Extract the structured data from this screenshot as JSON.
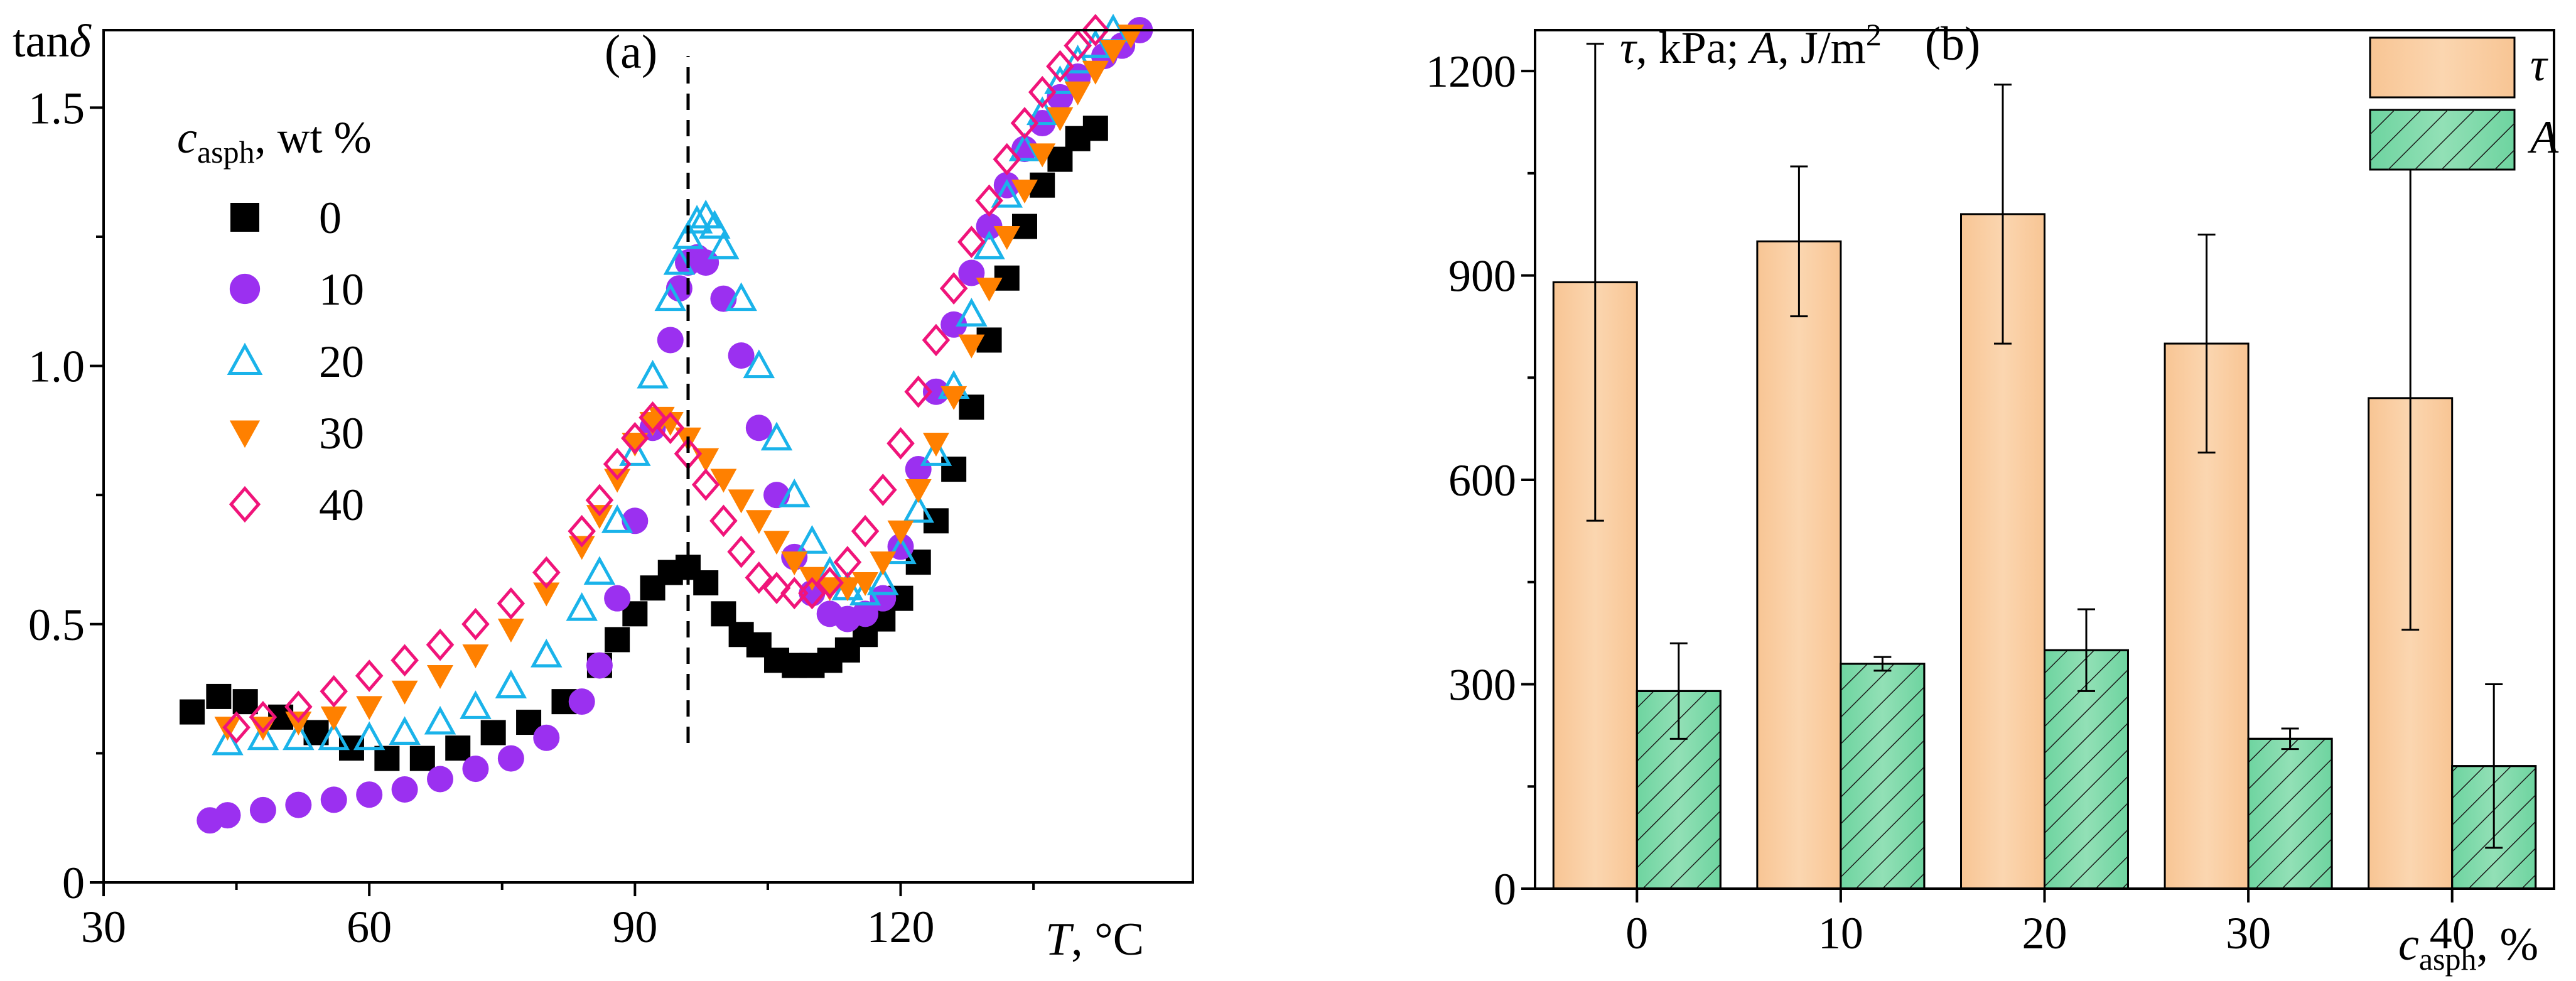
{
  "chart_data": [
    {
      "type": "scatter",
      "panel_label": "(a)",
      "ylabel_main": "tan",
      "ylabel_greek": "δ",
      "xlabel_var": "T",
      "xlabel_unit": ", °C",
      "xlim": [
        30,
        153
      ],
      "ylim": [
        0,
        1.65
      ],
      "xticks": [
        30,
        60,
        90,
        120
      ],
      "xtick_labels": [
        "30",
        "60",
        "90",
        "120"
      ],
      "yticks": [
        0,
        0.5,
        1.0,
        1.5
      ],
      "ytick_labels": [
        "0",
        "0.5",
        "1.0",
        "1.5"
      ],
      "vline_x": 96,
      "vline_y": [
        0.27,
        1.6
      ],
      "legend": {
        "title_var": "c",
        "title_sub": "asph",
        "title_unit": ", wt %",
        "position": "top-left"
      },
      "series": [
        {
          "name": "0",
          "marker": "square",
          "color": "#000000",
          "points": [
            [
              40,
              0.33
            ],
            [
              43,
              0.36
            ],
            [
              46,
              0.35
            ],
            [
              50,
              0.32
            ],
            [
              54,
              0.29
            ],
            [
              58,
              0.26
            ],
            [
              62,
              0.24
            ],
            [
              66,
              0.24
            ],
            [
              70,
              0.26
            ],
            [
              74,
              0.29
            ],
            [
              78,
              0.31
            ],
            [
              82,
              0.35
            ],
            [
              86,
              0.42
            ],
            [
              88,
              0.47
            ],
            [
              90,
              0.52
            ],
            [
              92,
              0.57
            ],
            [
              94,
              0.6
            ],
            [
              96,
              0.61
            ],
            [
              98,
              0.58
            ],
            [
              100,
              0.52
            ],
            [
              102,
              0.48
            ],
            [
              104,
              0.46
            ],
            [
              106,
              0.43
            ],
            [
              108,
              0.42
            ],
            [
              110,
              0.42
            ],
            [
              112,
              0.43
            ],
            [
              114,
              0.45
            ],
            [
              116,
              0.48
            ],
            [
              118,
              0.51
            ],
            [
              120,
              0.55
            ],
            [
              122,
              0.62
            ],
            [
              124,
              0.7
            ],
            [
              126,
              0.8
            ],
            [
              128,
              0.92
            ],
            [
              130,
              1.05
            ],
            [
              132,
              1.17
            ],
            [
              134,
              1.27
            ],
            [
              136,
              1.35
            ],
            [
              138,
              1.4
            ],
            [
              140,
              1.44
            ],
            [
              142,
              1.46
            ]
          ]
        },
        {
          "name": "10",
          "marker": "circle",
          "color": "#9b30f0",
          "points": [
            [
              42,
              0.12
            ],
            [
              44,
              0.13
            ],
            [
              48,
              0.14
            ],
            [
              52,
              0.15
            ],
            [
              56,
              0.16
            ],
            [
              60,
              0.17
            ],
            [
              64,
              0.18
            ],
            [
              68,
              0.2
            ],
            [
              72,
              0.22
            ],
            [
              76,
              0.24
            ],
            [
              80,
              0.28
            ],
            [
              84,
              0.35
            ],
            [
              86,
              0.42
            ],
            [
              88,
              0.55
            ],
            [
              90,
              0.7
            ],
            [
              92,
              0.88
            ],
            [
              94,
              1.05
            ],
            [
              95,
              1.15
            ],
            [
              96,
              1.2
            ],
            [
              97,
              1.21
            ],
            [
              98,
              1.2
            ],
            [
              100,
              1.13
            ],
            [
              102,
              1.02
            ],
            [
              104,
              0.88
            ],
            [
              106,
              0.75
            ],
            [
              108,
              0.63
            ],
            [
              110,
              0.56
            ],
            [
              112,
              0.52
            ],
            [
              114,
              0.51
            ],
            [
              116,
              0.52
            ],
            [
              118,
              0.55
            ],
            [
              120,
              0.65
            ],
            [
              122,
              0.8
            ],
            [
              124,
              0.95
            ],
            [
              126,
              1.08
            ],
            [
              128,
              1.18
            ],
            [
              130,
              1.27
            ],
            [
              132,
              1.35
            ],
            [
              134,
              1.42
            ],
            [
              136,
              1.47
            ],
            [
              138,
              1.52
            ],
            [
              140,
              1.56
            ],
            [
              143,
              1.6
            ],
            [
              145,
              1.62
            ],
            [
              147,
              1.65
            ]
          ]
        },
        {
          "name": "20",
          "marker": "triangle-up",
          "color": "#1ab3ea",
          "points": [
            [
              44,
              0.27
            ],
            [
              48,
              0.28
            ],
            [
              52,
              0.28
            ],
            [
              56,
              0.28
            ],
            [
              60,
              0.28
            ],
            [
              64,
              0.29
            ],
            [
              68,
              0.31
            ],
            [
              72,
              0.34
            ],
            [
              76,
              0.38
            ],
            [
              80,
              0.44
            ],
            [
              84,
              0.53
            ],
            [
              86,
              0.6
            ],
            [
              88,
              0.7
            ],
            [
              90,
              0.83
            ],
            [
              92,
              0.98
            ],
            [
              94,
              1.13
            ],
            [
              95,
              1.2
            ],
            [
              96,
              1.25
            ],
            [
              97,
              1.28
            ],
            [
              98,
              1.29
            ],
            [
              99,
              1.27
            ],
            [
              100,
              1.23
            ],
            [
              102,
              1.13
            ],
            [
              104,
              1.0
            ],
            [
              106,
              0.86
            ],
            [
              108,
              0.75
            ],
            [
              110,
              0.66
            ],
            [
              112,
              0.6
            ],
            [
              114,
              0.57
            ],
            [
              116,
              0.56
            ],
            [
              118,
              0.58
            ],
            [
              120,
              0.64
            ],
            [
              122,
              0.72
            ],
            [
              124,
              0.83
            ],
            [
              126,
              0.96
            ],
            [
              128,
              1.1
            ],
            [
              130,
              1.23
            ],
            [
              132,
              1.33
            ],
            [
              134,
              1.42
            ],
            [
              136,
              1.49
            ],
            [
              138,
              1.55
            ],
            [
              140,
              1.59
            ],
            [
              142,
              1.62
            ],
            [
              144,
              1.65
            ]
          ]
        },
        {
          "name": "30",
          "marker": "triangle-down",
          "color": "#ff8000",
          "points": [
            [
              44,
              0.3
            ],
            [
              48,
              0.3
            ],
            [
              52,
              0.31
            ],
            [
              56,
              0.32
            ],
            [
              60,
              0.34
            ],
            [
              64,
              0.37
            ],
            [
              68,
              0.4
            ],
            [
              72,
              0.44
            ],
            [
              76,
              0.49
            ],
            [
              80,
              0.56
            ],
            [
              84,
              0.65
            ],
            [
              86,
              0.71
            ],
            [
              88,
              0.78
            ],
            [
              90,
              0.85
            ],
            [
              92,
              0.89
            ],
            [
              93,
              0.9
            ],
            [
              94,
              0.89
            ],
            [
              96,
              0.86
            ],
            [
              98,
              0.82
            ],
            [
              100,
              0.78
            ],
            [
              102,
              0.74
            ],
            [
              104,
              0.7
            ],
            [
              106,
              0.66
            ],
            [
              108,
              0.62
            ],
            [
              110,
              0.59
            ],
            [
              112,
              0.57
            ],
            [
              114,
              0.57
            ],
            [
              116,
              0.58
            ],
            [
              118,
              0.62
            ],
            [
              120,
              0.68
            ],
            [
              122,
              0.76
            ],
            [
              124,
              0.85
            ],
            [
              126,
              0.94
            ],
            [
              128,
              1.04
            ],
            [
              130,
              1.15
            ],
            [
              132,
              1.25
            ],
            [
              134,
              1.34
            ],
            [
              136,
              1.41
            ],
            [
              138,
              1.48
            ],
            [
              140,
              1.53
            ],
            [
              142,
              1.57
            ],
            [
              144,
              1.61
            ],
            [
              146,
              1.64
            ]
          ]
        },
        {
          "name": "40",
          "marker": "diamond",
          "color": "#f0147a",
          "points": [
            [
              45,
              0.3
            ],
            [
              48,
              0.32
            ],
            [
              52,
              0.34
            ],
            [
              56,
              0.37
            ],
            [
              60,
              0.4
            ],
            [
              64,
              0.43
            ],
            [
              68,
              0.46
            ],
            [
              72,
              0.5
            ],
            [
              76,
              0.54
            ],
            [
              80,
              0.6
            ],
            [
              84,
              0.68
            ],
            [
              86,
              0.74
            ],
            [
              88,
              0.81
            ],
            [
              90,
              0.86
            ],
            [
              92,
              0.9
            ],
            [
              94,
              0.88
            ],
            [
              96,
              0.83
            ],
            [
              98,
              0.77
            ],
            [
              100,
              0.7
            ],
            [
              102,
              0.64
            ],
            [
              104,
              0.59
            ],
            [
              106,
              0.57
            ],
            [
              108,
              0.56
            ],
            [
              110,
              0.56
            ],
            [
              112,
              0.58
            ],
            [
              114,
              0.62
            ],
            [
              116,
              0.68
            ],
            [
              118,
              0.76
            ],
            [
              120,
              0.85
            ],
            [
              122,
              0.95
            ],
            [
              124,
              1.05
            ],
            [
              126,
              1.15
            ],
            [
              128,
              1.24
            ],
            [
              130,
              1.32
            ],
            [
              132,
              1.4
            ],
            [
              134,
              1.47
            ],
            [
              136,
              1.53
            ],
            [
              138,
              1.58
            ],
            [
              140,
              1.62
            ],
            [
              142,
              1.65
            ]
          ]
        }
      ]
    },
    {
      "type": "bar",
      "panel_label": "(b)",
      "ylabel_tau": "τ",
      "ylabel_mid1": ", kPa; ",
      "ylabel_A": "A",
      "ylabel_mid2": ", J/m",
      "ylabel_sup": "2",
      "xlabel_var": "c",
      "xlabel_sub": "asph",
      "xlabel_unit": ", %",
      "categories": [
        "0",
        "10",
        "20",
        "30",
        "40"
      ],
      "ylim": [
        0,
        1260
      ],
      "yticks": [
        0,
        300,
        600,
        900,
        1200
      ],
      "ytick_labels": [
        "0",
        "300",
        "600",
        "900",
        "1200"
      ],
      "legend": {
        "position": "top-right"
      },
      "series": [
        {
          "name": "τ",
          "style": "solid",
          "color": "#f8c594",
          "values": [
            890,
            950,
            990,
            800,
            720
          ],
          "err_low": [
            540,
            840,
            800,
            640,
            380
          ],
          "err_high": [
            1240,
            1060,
            1180,
            960,
            1060
          ]
        },
        {
          "name": "A",
          "style": "hatched",
          "color": "#6ed4a0",
          "values": [
            290,
            330,
            350,
            220,
            180
          ],
          "err_low": [
            220,
            320,
            290,
            205,
            60
          ],
          "err_high": [
            360,
            340,
            410,
            235,
            300
          ]
        }
      ]
    }
  ]
}
